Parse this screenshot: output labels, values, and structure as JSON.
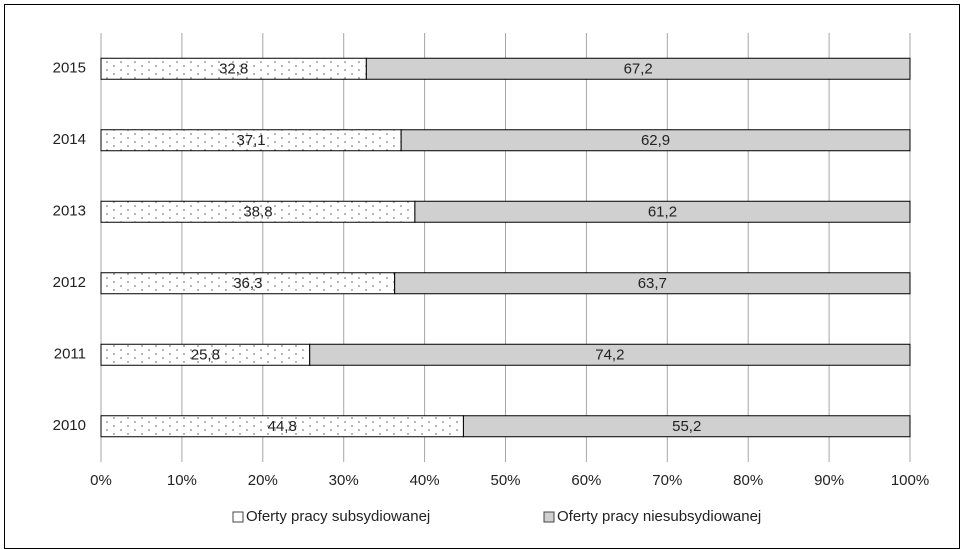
{
  "chart_data": {
    "type": "bar",
    "orientation": "horizontal",
    "stacked": true,
    "categories": [
      "2015",
      "2014",
      "2013",
      "2012",
      "2011",
      "2010"
    ],
    "series": [
      {
        "name": "Oferty pracy subsydiowanej",
        "values": [
          32.8,
          37.1,
          38.8,
          36.3,
          25.8,
          44.8
        ],
        "labels": [
          "32,8",
          "37,1",
          "38,8",
          "36,3",
          "25,8",
          "44,8"
        ],
        "color": "#ffffff",
        "pattern": "dotted"
      },
      {
        "name": "Oferty pracy niesubsydiowanej",
        "values": [
          67.2,
          62.9,
          61.2,
          63.7,
          74.2,
          55.2
        ],
        "labels": [
          "67,2",
          "62,9",
          "61,2",
          "63,7",
          "74,2",
          "55,2"
        ],
        "color": "#d0d0d0",
        "pattern": "solid"
      }
    ],
    "xlim": [
      0,
      100
    ],
    "x_ticks": [
      "0%",
      "10%",
      "20%",
      "30%",
      "40%",
      "50%",
      "60%",
      "70%",
      "80%",
      "90%",
      "100%"
    ],
    "grid": true,
    "legend_position": "bottom",
    "title": "",
    "xlabel": "",
    "ylabel": ""
  }
}
